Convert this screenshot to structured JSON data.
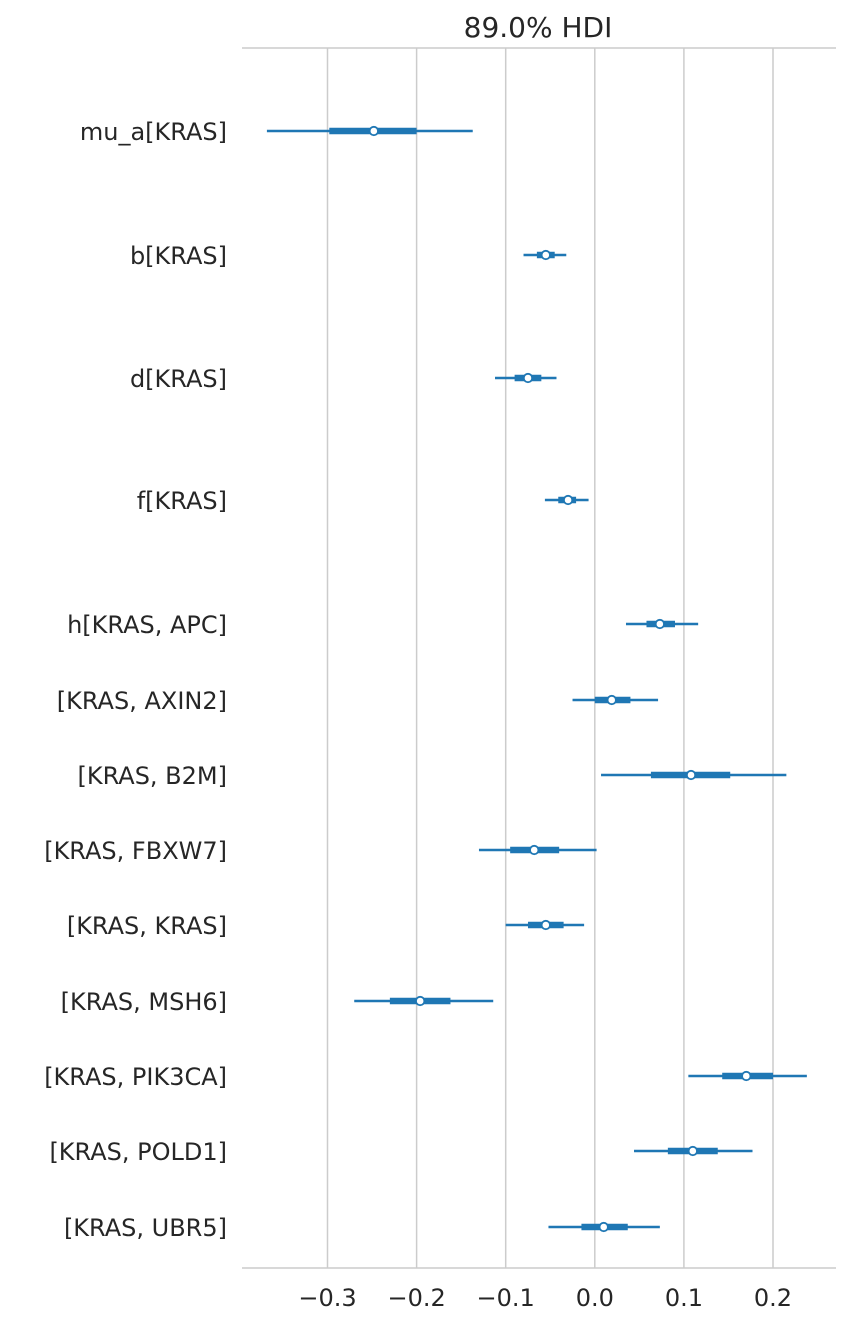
{
  "chart_data": {
    "type": "forest",
    "title": "89.0% HDI",
    "xlabel": "",
    "ylabel": "",
    "xlim": [
      -0.396,
      0.27
    ],
    "xticks": [
      -0.3,
      -0.2,
      -0.1,
      0.0,
      0.1,
      0.2
    ],
    "xtick_labels": [
      "−0.3",
      "−0.2",
      "−0.1",
      "0.0",
      "0.1",
      "0.2"
    ],
    "grid": "vertical",
    "color": "#1f77b4",
    "rows": [
      {
        "label": "mu_a[KRAS]",
        "hdi_low": -0.368,
        "iqr_low": -0.298,
        "median": -0.248,
        "iqr_high": -0.2,
        "hdi_high": -0.137
      },
      {
        "label": "b[KRAS]",
        "hdi_low": -0.08,
        "iqr_low": -0.065,
        "median": -0.055,
        "iqr_high": -0.045,
        "hdi_high": -0.032
      },
      {
        "label": "d[KRAS]",
        "hdi_low": -0.112,
        "iqr_low": -0.09,
        "median": -0.075,
        "iqr_high": -0.06,
        "hdi_high": -0.043
      },
      {
        "label": "f[KRAS]",
        "hdi_low": -0.056,
        "iqr_low": -0.041,
        "median": -0.03,
        "iqr_high": -0.021,
        "hdi_high": -0.007
      },
      {
        "label": "h[KRAS, APC]",
        "hdi_low": 0.035,
        "iqr_low": 0.058,
        "median": 0.073,
        "iqr_high": 0.09,
        "hdi_high": 0.116
      },
      {
        "label": "[KRAS, AXIN2]",
        "hdi_low": -0.025,
        "iqr_low": 0.0,
        "median": 0.019,
        "iqr_high": 0.04,
        "hdi_high": 0.071
      },
      {
        "label": "[KRAS, B2M]",
        "hdi_low": 0.007,
        "iqr_low": 0.063,
        "median": 0.108,
        "iqr_high": 0.152,
        "hdi_high": 0.215
      },
      {
        "label": "[KRAS, FBXW7]",
        "hdi_low": -0.13,
        "iqr_low": -0.095,
        "median": -0.068,
        "iqr_high": -0.04,
        "hdi_high": 0.002
      },
      {
        "label": "[KRAS, KRAS]",
        "hdi_low": -0.1,
        "iqr_low": -0.075,
        "median": -0.055,
        "iqr_high": -0.035,
        "hdi_high": -0.012
      },
      {
        "label": "[KRAS, MSH6]",
        "hdi_low": -0.27,
        "iqr_low": -0.23,
        "median": -0.196,
        "iqr_high": -0.162,
        "hdi_high": -0.114
      },
      {
        "label": "[KRAS, PIK3CA]",
        "hdi_low": 0.105,
        "iqr_low": 0.143,
        "median": 0.17,
        "iqr_high": 0.2,
        "hdi_high": 0.238
      },
      {
        "label": "[KRAS, POLD1]",
        "hdi_low": 0.044,
        "iqr_low": 0.082,
        "median": 0.11,
        "iqr_high": 0.138,
        "hdi_high": 0.177
      },
      {
        "label": "[KRAS, UBR5]",
        "hdi_low": -0.052,
        "iqr_low": -0.015,
        "median": 0.01,
        "iqr_high": 0.037,
        "hdi_high": 0.073
      }
    ]
  }
}
